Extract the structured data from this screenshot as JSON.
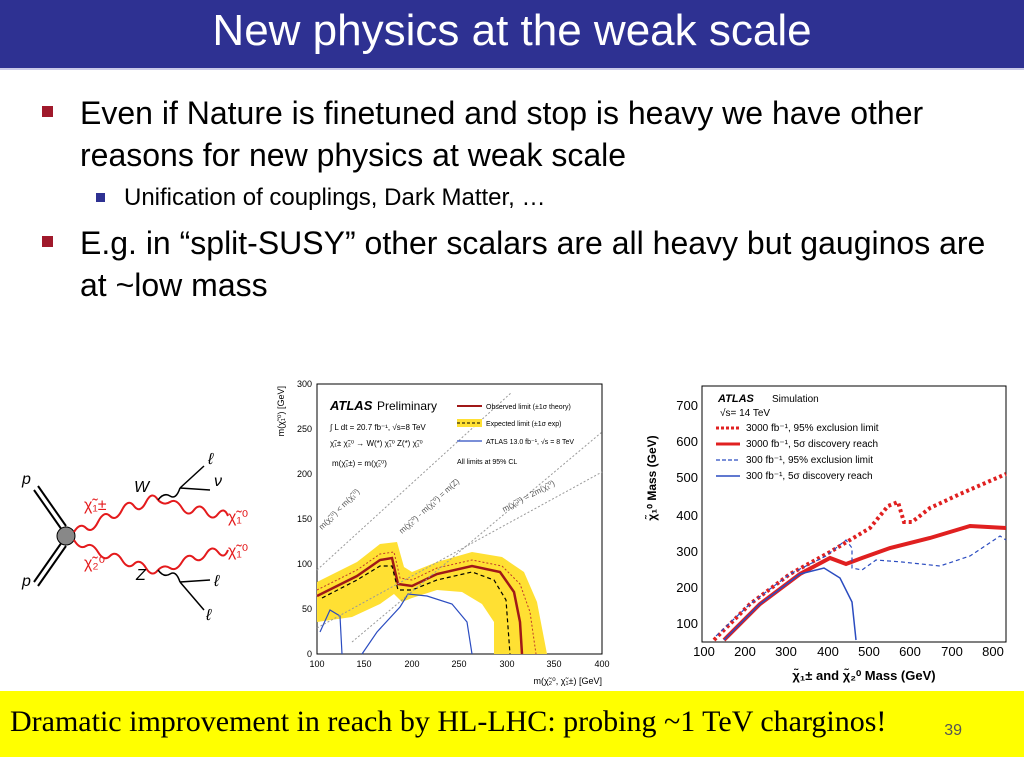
{
  "slide": {
    "title": "New physics at the weak scale",
    "bullets": [
      {
        "text": "Even if Nature is finetuned and stop is heavy we have other reasons for new physics at weak scale"
      },
      {
        "text": "E.g. in “split-SUSY” other scalars are all heavy but gauginos are at ~low mass"
      }
    ],
    "sub_bullet": "Unification of couplings, Dark Matter, …",
    "footer": "Dramatic improvement in reach by HL-LHC: probing ~1 TeV charginos!",
    "slide_number": "39",
    "accent": "#2e3192",
    "bullet_color": "#a0192b",
    "footer_bg": "#ffff00"
  },
  "feynman": {
    "labels": [
      "p",
      "p",
      "W",
      "Z",
      "ℓ",
      "ν",
      "ℓ",
      "ℓ",
      "χ̃₁±",
      "χ̃₂⁰",
      "χ̃₁⁰",
      "χ̃₁⁰"
    ]
  },
  "plot_left": {
    "experiment": "ATLAS",
    "status": "Preliminary",
    "lumi": "∫ L dt = 20.7 fb⁻¹, √s=8 TeV",
    "process": "χ̃₁± χ̃₂⁰ → W(*) χ̃₁⁰ Z(*) χ̃₁⁰",
    "mass_assumption": "m(χ̃₁±) = m(χ̃₂⁰)",
    "legend": [
      "Observed limit (±1σ theory)",
      "Expected limit (±1σ exp)",
      "ATLAS 13.0 fb⁻¹, √s = 8 TeV"
    ],
    "cl_note": "All limits at 95% CL",
    "diag_labels": [
      "m(χ̃₂⁰) < m(χ̃₁⁰)",
      "m(χ̃₂⁰) - m(χ̃₁⁰) = m(Z)",
      "m(χ̃₂⁰) = 2m(χ̃₁⁰)"
    ],
    "ylabel": "m(χ̃₁⁰) [GeV]",
    "xlabel": "m(χ̃₂⁰, χ̃₁±) [GeV]",
    "xticks": [
      "100",
      "150",
      "200",
      "250",
      "300",
      "350",
      "400"
    ],
    "yticks": [
      "0",
      "50",
      "100",
      "150",
      "200",
      "250",
      "300"
    ]
  },
  "plot_right": {
    "experiment": "ATLAS",
    "status": "Simulation",
    "energy": "√s= 14 TeV",
    "legend": [
      "3000 fb⁻¹, 95% exclusion limit",
      "3000 fb⁻¹, 5σ discovery reach",
      "300 fb⁻¹, 95% exclusion limit",
      "300 fb⁻¹, 5σ discovery reach"
    ],
    "ylabel": "χ̃₁⁰ Mass (GeV)",
    "xlabel": "χ̃₁± and χ̃₂⁰ Mass (GeV)",
    "xticks": [
      "100",
      "200",
      "300",
      "400",
      "500",
      "600",
      "700",
      "800"
    ],
    "yticks": [
      "100",
      "200",
      "300",
      "400",
      "500",
      "600",
      "700"
    ]
  }
}
